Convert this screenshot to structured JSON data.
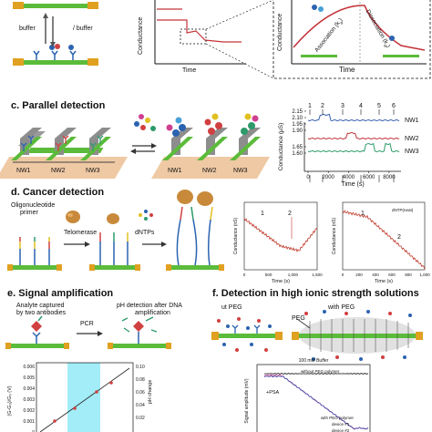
{
  "panel_a": {
    "buffer_left": "buffer",
    "buffer_right": "/ buffer",
    "conductance_label": "Conductance",
    "time_label": "Time",
    "inset_conductance_label": "Conductance",
    "inset_time_label": "Time",
    "association": "Association (k",
    "association_sub": "a",
    "association_close": ")",
    "dissociation": "Dissociation (k",
    "dissociation_sub": "d",
    "dissociation_close": ")"
  },
  "panel_c": {
    "title": "c. Parallel detection",
    "nw_labels": [
      "NW1",
      "NW2",
      "NW3"
    ],
    "nw_labels_right": [
      "NW1",
      "NW2",
      "NW3"
    ],
    "chart_data": {
      "type": "line",
      "xlabel": "Time (s)",
      "ylabel": "Conductance (μS)",
      "x_ticks": [
        "0",
        "2000",
        "4000",
        "6000",
        "8000"
      ],
      "y_ticks": [
        "2.15",
        "2.10",
        "1.95",
        "1.90",
        "1.65",
        "1.60"
      ],
      "xlim": [
        0,
        9000
      ],
      "markers": [
        "1",
        "2",
        "3",
        "4",
        "5",
        "6"
      ],
      "series": [
        {
          "name": "NW1",
          "color": "#3a62b0"
        },
        {
          "name": "NW2",
          "color": "#c4343a"
        },
        {
          "name": "NW3",
          "color": "#2e9a6a"
        }
      ]
    }
  },
  "panel_d": {
    "title": "d. Cancer detection",
    "primer_label_1": "Oligonucleotide",
    "primer_label_2": "primer",
    "telomerase": "Telomerase",
    "dntps": "dNTPs",
    "chart1": {
      "ylabel": "Conductance (nS)",
      "xlabel": "Time (s)",
      "markers": [
        "1",
        "2"
      ],
      "x_ticks": [
        "0",
        "500",
        "1,000",
        "1,500"
      ],
      "color": "#c0392b"
    },
    "chart2": {
      "ylabel": "Conductance (nS)",
      "xlabel": "Time (s)",
      "markers": [
        "1",
        "2"
      ],
      "annotation": "dNTP(neat)",
      "x_ticks": [
        "0",
        "200",
        "400",
        "600",
        "800",
        "1,000"
      ],
      "color": "#c0392b"
    }
  },
  "panel_e": {
    "title": "e. Signal amplification",
    "analyte_1": "Analyte captured",
    "analyte_2": "by two antibodies",
    "pcr": "PCR",
    "ph_1": "pH detection after DNA",
    "ph_2": "amplification",
    "chart": {
      "ylabel": "(G-G₀)/G₀ (V)",
      "ylabel_right": "pH change",
      "y_ticks": [
        "0.006",
        "0.005",
        "0.004",
        "0.003",
        "0.002",
        "0.001",
        "0"
      ],
      "y_ticks_right": [
        "0.10",
        "0.08",
        "0.06",
        "0.04",
        "0.02"
      ],
      "highlight_color": "#8be8f5"
    }
  },
  "panel_f": {
    "title": "f. Detection in high ionic strength solutions",
    "without_peg": "ut PEG",
    "with_peg": "with PEG",
    "peg": "PEG",
    "chart": {
      "title": "100 mM Buffer",
      "ylabel": "Signal amplitude (mV)",
      "series_labels": [
        "without PEG polymer",
        "with PEG polymer",
        "device #1",
        "device #2"
      ],
      "psa": "+PSA"
    }
  }
}
